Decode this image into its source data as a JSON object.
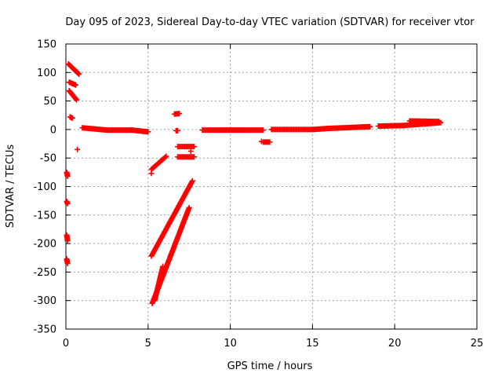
{
  "chart_data": {
    "type": "scatter",
    "title": "Day 095 of 2023, Sidereal Day-to-day VTEC variation (SDTVAR) for receiver vtor",
    "xlabel": "GPS time / hours",
    "ylabel": "SDTVAR / TECUs",
    "xlim": [
      0,
      25
    ],
    "ylim": [
      -350,
      150
    ],
    "xticks": [
      0,
      5,
      10,
      15,
      20,
      25
    ],
    "yticks": [
      150,
      100,
      50,
      0,
      -50,
      -100,
      -150,
      -200,
      -250,
      -300,
      -350
    ],
    "grid": true,
    "legend": "none",
    "marker": "+",
    "color": "#ff0000",
    "segments": [
      {
        "x": [
          0.15,
          0.8
        ],
        "y": [
          115,
          97
        ]
      },
      {
        "x": [
          0.2,
          0.6
        ],
        "y": [
          83,
          78
        ]
      },
      {
        "x": [
          0.2,
          0.65
        ],
        "y": [
          68,
          52
        ]
      },
      {
        "x": [
          0.25,
          0.4
        ],
        "y": [
          22,
          20
        ]
      },
      {
        "x": [
          0.05,
          0.1
        ],
        "y": [
          -75,
          -82
        ]
      },
      {
        "x": [
          0.05,
          0.1
        ],
        "y": [
          -126,
          -130
        ]
      },
      {
        "x": [
          0.05,
          0.1
        ],
        "y": [
          -185,
          -195
        ]
      },
      {
        "x": [
          0.05,
          0.1
        ],
        "y": [
          -227,
          -235
        ]
      },
      {
        "x": [
          1.0,
          2.5
        ],
        "y": [
          3,
          -1
        ]
      },
      {
        "x": [
          2.5,
          4.0
        ],
        "y": [
          -1,
          -1
        ]
      },
      {
        "x": [
          4.0,
          5.0
        ],
        "y": [
          -1,
          -4
        ]
      },
      {
        "x": [
          5.2,
          6.1
        ],
        "y": [
          -70,
          -47
        ]
      },
      {
        "x": [
          5.2,
          7.7
        ],
        "y": [
          -222,
          -90
        ]
      },
      {
        "x": [
          5.25,
          7.5
        ],
        "y": [
          -305,
          -137
        ]
      },
      {
        "x": [
          5.4,
          5.9
        ],
        "y": [
          -300,
          -240
        ]
      },
      {
        "x": [
          6.6,
          6.9
        ],
        "y": [
          27,
          28
        ]
      },
      {
        "x": [
          6.7,
          6.8
        ],
        "y": [
          -2,
          -2
        ]
      },
      {
        "x": [
          6.8,
          7.8
        ],
        "y": [
          -30,
          -30
        ]
      },
      {
        "x": [
          6.8,
          7.8
        ],
        "y": [
          -48,
          -48
        ]
      },
      {
        "x": [
          8.3,
          12.0
        ],
        "y": [
          -1,
          -1
        ]
      },
      {
        "x": [
          12.0,
          12.4
        ],
        "y": [
          -22,
          -22
        ]
      },
      {
        "x": [
          12.5,
          15.0
        ],
        "y": [
          0,
          0
        ]
      },
      {
        "x": [
          15.0,
          16.0
        ],
        "y": [
          0,
          2
        ]
      },
      {
        "x": [
          16.0,
          18.5
        ],
        "y": [
          2,
          5
        ]
      },
      {
        "x": [
          19.0,
          20.5
        ],
        "y": [
          6,
          7
        ]
      },
      {
        "x": [
          20.5,
          22.8
        ],
        "y": [
          7,
          12
        ]
      },
      {
        "x": [
          20.9,
          22.7
        ],
        "y": [
          15,
          14
        ]
      }
    ],
    "points": [
      {
        "x": 0.7,
        "y": -35
      },
      {
        "x": 5.2,
        "y": -77
      },
      {
        "x": 7.6,
        "y": -38
      },
      {
        "x": 11.9,
        "y": -21
      }
    ]
  }
}
